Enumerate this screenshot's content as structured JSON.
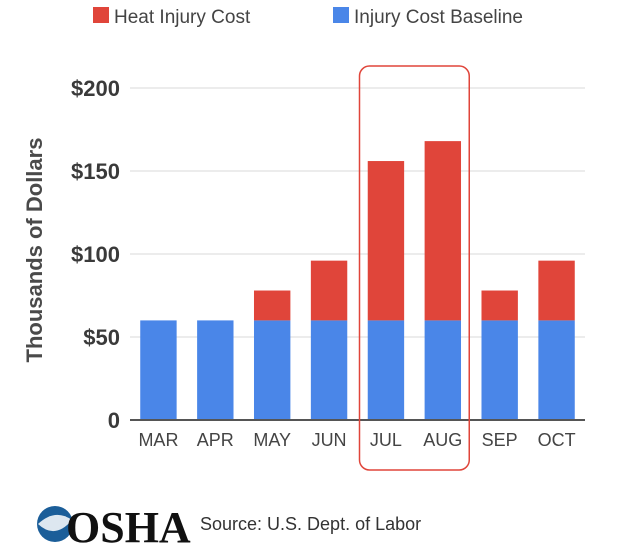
{
  "chart_data": {
    "type": "bar",
    "stacked": true,
    "categories": [
      "MAR",
      "APR",
      "MAY",
      "JUN",
      "JUL",
      "AUG",
      "SEP",
      "OCT"
    ],
    "series": [
      {
        "name": "Injury Cost Baseline",
        "color": "#4a86e8",
        "values": [
          60,
          60,
          60,
          60,
          60,
          60,
          60,
          60
        ]
      },
      {
        "name": "Heat Injury Cost",
        "color": "#e0453a",
        "values": [
          0,
          0,
          18,
          36,
          96,
          108,
          18,
          36
        ]
      }
    ],
    "ylabel": "Thousands of Dollars",
    "ylim": [
      0,
      200
    ],
    "yticks": [
      0,
      50,
      100,
      150,
      200
    ],
    "ytick_labels": [
      "0",
      "$50",
      "$100",
      "$150",
      "$200"
    ],
    "grid": true,
    "legend_position": "top",
    "highlight": {
      "categories": [
        "JUL",
        "AUG"
      ],
      "color": "#e0453a"
    }
  },
  "footer": {
    "logo_text": "OSHA",
    "source": "Source: U.S. Dept. of Labor"
  }
}
